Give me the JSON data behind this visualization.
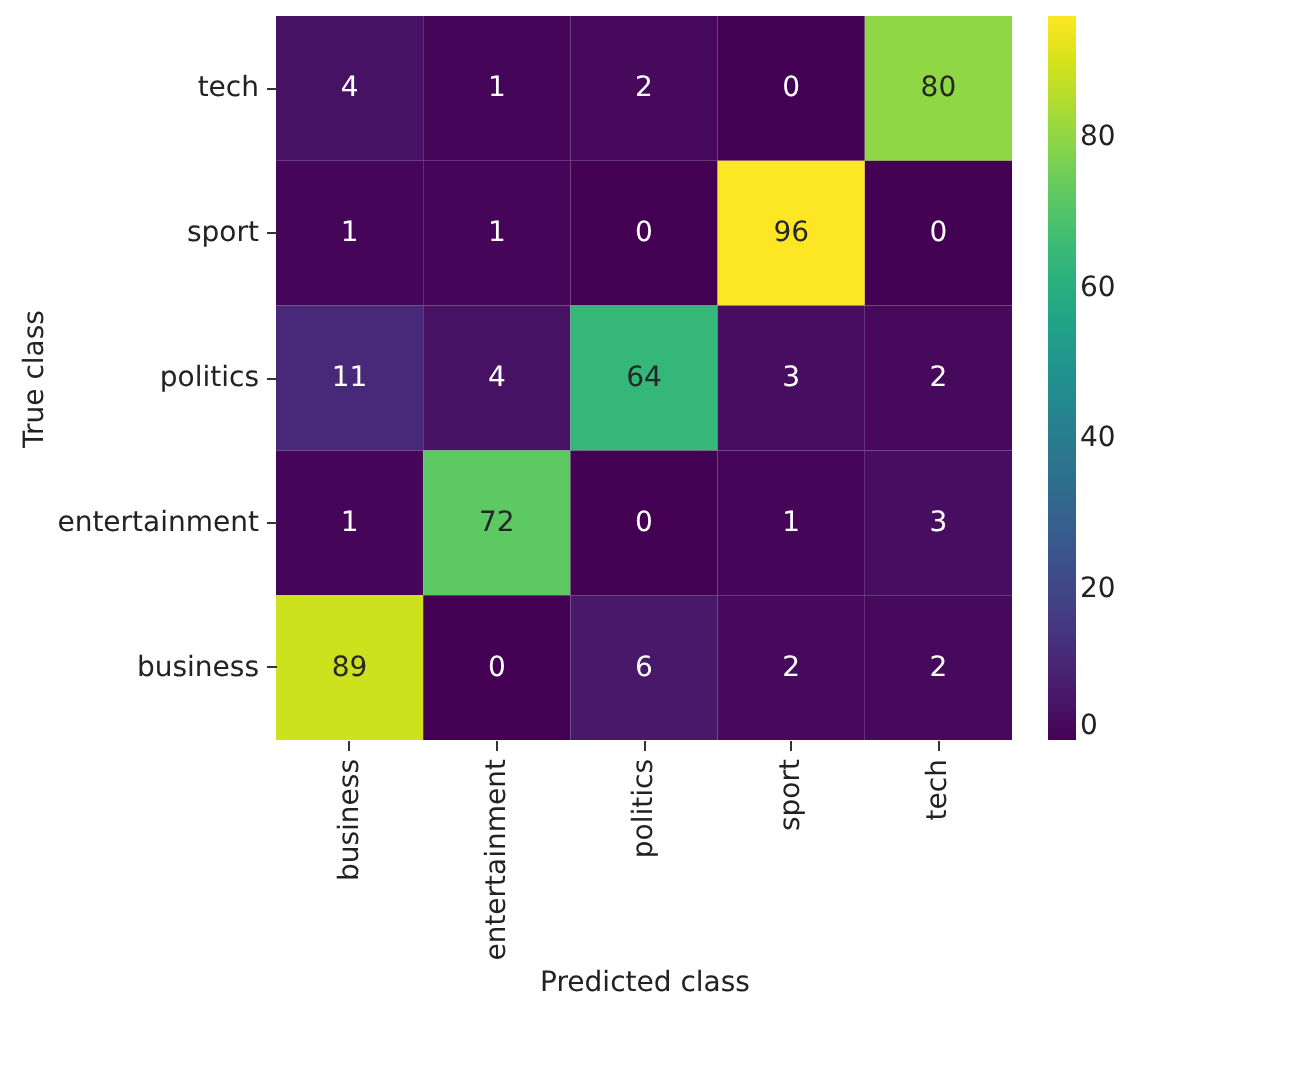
{
  "chart_data": {
    "type": "heatmap",
    "xlabel": "Predicted class",
    "ylabel": "True class",
    "categories": [
      "business",
      "entertainment",
      "politics",
      "sport",
      "tech"
    ],
    "y_categories": [
      "tech",
      "sport",
      "politics",
      "entertainment",
      "business"
    ],
    "cells": [
      [
        4,
        1,
        2,
        0,
        80
      ],
      [
        1,
        1,
        0,
        96,
        0
      ],
      [
        11,
        4,
        64,
        3,
        2
      ],
      [
        1,
        72,
        0,
        1,
        3
      ],
      [
        89,
        0,
        6,
        2,
        2
      ]
    ],
    "clim": [
      0,
      96
    ],
    "cticks": [
      0,
      20,
      40,
      60,
      80
    ],
    "data_labels": true
  }
}
